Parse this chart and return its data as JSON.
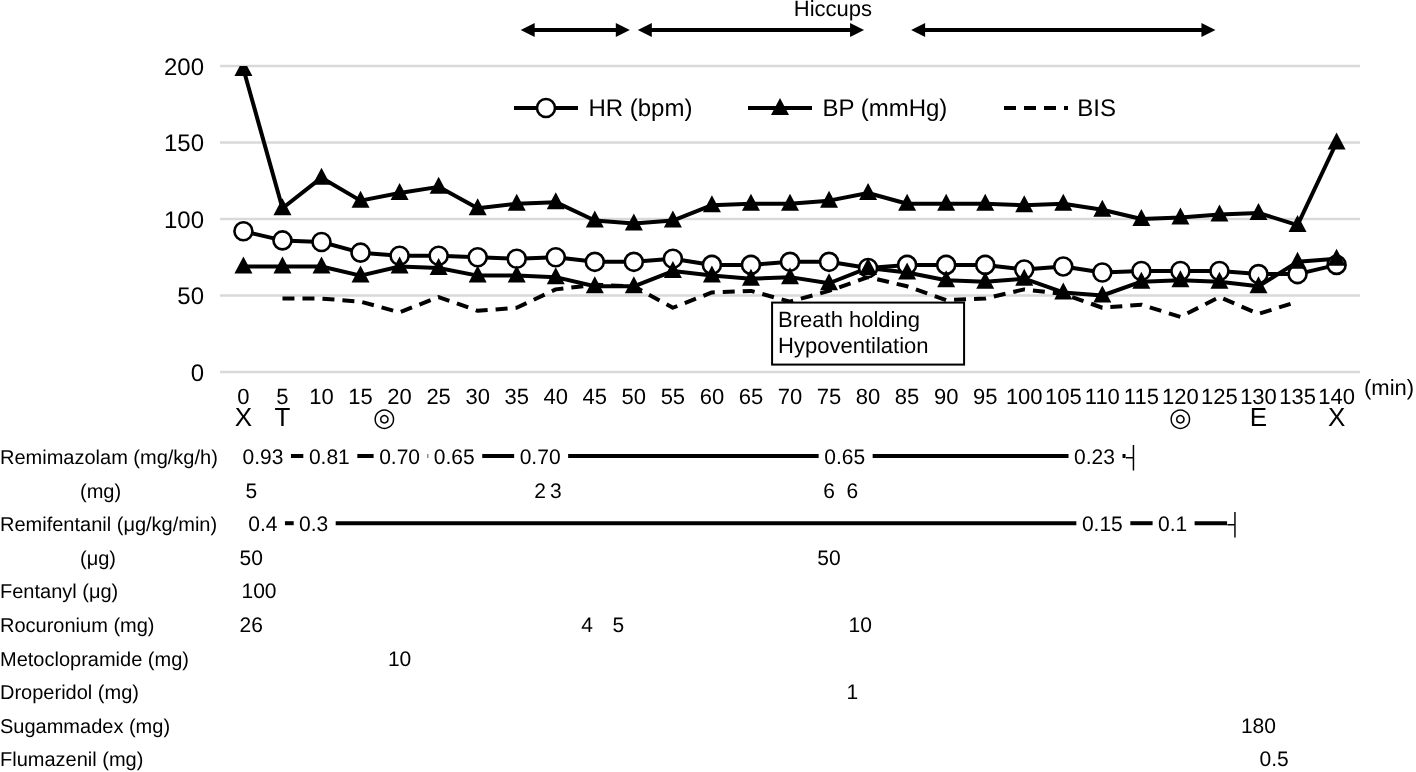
{
  "chart_data": {
    "type": "line",
    "x": [
      0,
      5,
      10,
      15,
      20,
      25,
      30,
      35,
      40,
      45,
      50,
      55,
      60,
      65,
      70,
      75,
      80,
      85,
      90,
      95,
      100,
      105,
      110,
      115,
      120,
      125,
      130,
      135,
      140
    ],
    "xlim": [
      -3,
      143
    ],
    "xticks": [
      0,
      5,
      10,
      15,
      20,
      25,
      30,
      35,
      40,
      45,
      50,
      55,
      60,
      65,
      70,
      75,
      80,
      85,
      90,
      95,
      100,
      105,
      110,
      115,
      120,
      125,
      130,
      135,
      140
    ],
    "xlabel": "(min)",
    "ylim": [
      0,
      200
    ],
    "yticks": [
      0,
      50,
      100,
      150,
      200
    ],
    "grid": "y",
    "legend": "top right",
    "series": [
      {
        "name": "HR (bpm)",
        "color": "#000000",
        "marker": "circle",
        "line_style": "solid",
        "values": [
          92,
          86,
          85,
          78,
          76,
          76,
          75,
          74,
          75,
          72,
          72,
          74,
          70,
          70,
          72,
          72,
          68,
          70,
          70,
          70,
          67,
          69,
          65,
          66,
          66,
          66,
          64,
          64,
          70
        ]
      },
      {
        "name": "BP (mmHg)",
        "color": "#000000",
        "marker": "triangle",
        "line_style": "solid",
        "values": [
          198,
          107,
          127,
          112,
          117,
          121,
          107,
          110,
          111,
          99,
          97,
          99,
          109,
          110,
          110,
          112,
          117,
          110,
          110,
          110,
          109,
          110,
          106,
          100,
          101,
          103,
          104,
          96,
          150
        ]
      },
      {
        "color": "#000000",
        "marker": "triangle",
        "line_style": "solid",
        "values": [
          69,
          69,
          69,
          63,
          69,
          68,
          63,
          63,
          62,
          56,
          56,
          66,
          63,
          61,
          62,
          58,
          68,
          65,
          60,
          59,
          61,
          52,
          50,
          59,
          60,
          59,
          56,
          72,
          74
        ]
      },
      {
        "name": "BIS",
        "color": "#000000",
        "marker": "none",
        "line_style": "dashed",
        "values": [
          null,
          48,
          48,
          46,
          39,
          49,
          40,
          42,
          54,
          57,
          56,
          42,
          52,
          53,
          46,
          53,
          62,
          56,
          47,
          48,
          54,
          51,
          42,
          44,
          36,
          49,
          38,
          46,
          null
        ]
      }
    ],
    "annotations": [
      "Breath holding\nHypoventilation",
      "Hiccups",
      "X",
      "T",
      "◎",
      "◎",
      "E",
      "X",
      "Remimazolam (mg/kg/h)",
      "0.93",
      "0.81",
      "0.70",
      "0.65",
      "0.70",
      "0.65",
      "0.23",
      "┤",
      "(mg)",
      "5",
      "2",
      "3",
      "6",
      "6",
      "Remifentanil (μg/kg/min)",
      "0.4",
      "0.3",
      "0.15",
      "0.1",
      "┤",
      "(μg)",
      "50",
      "50",
      "Fentanyl (μg)",
      "100",
      "Rocuronium (mg)",
      "26",
      "4",
      "5",
      "10",
      "Metoclopramide (mg)",
      "10",
      "Droperidol (mg)",
      "1",
      "Sugammadex (mg)",
      "180",
      "Flumazenil (mg)",
      "0.5"
    ]
  }
}
